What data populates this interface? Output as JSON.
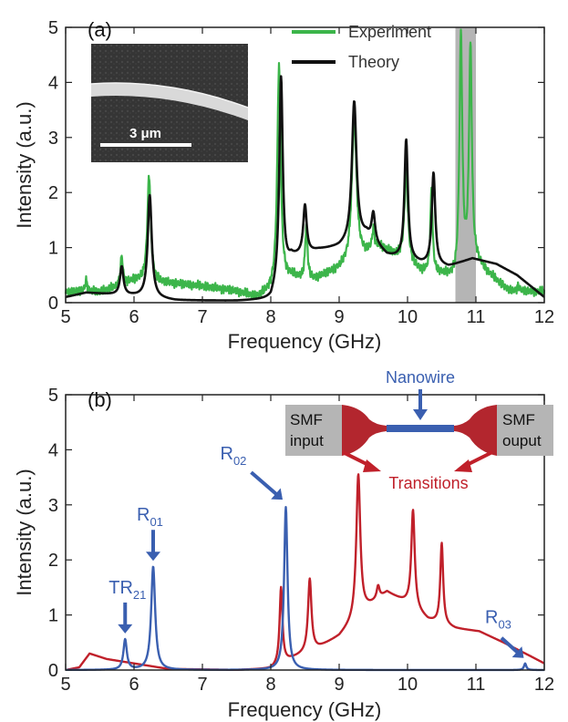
{
  "chart_data": [
    {
      "type": "line",
      "panel_label": "(a)",
      "xlabel": "Frequency (GHz)",
      "ylabel": "Intensity (a.u.)",
      "xlim": [
        5,
        12
      ],
      "ylim": [
        0,
        5
      ],
      "xticks": [
        5,
        6,
        7,
        8,
        9,
        10,
        11,
        12
      ],
      "yticks": [
        0,
        1,
        2,
        3,
        4,
        5
      ],
      "legend_position": "top-right",
      "shaded_band": [
        10.7,
        11.0
      ],
      "inset": {
        "scale_label": "3 μm"
      },
      "colors": {
        "experiment": "#3cb54a",
        "theory": "#111111",
        "band": "#b5b5b5"
      },
      "series": [
        {
          "name": "Experiment",
          "baseline": [
            [
              5.0,
              0.2
            ],
            [
              5.5,
              0.2
            ],
            [
              5.8,
              0.3
            ],
            [
              6.0,
              0.4
            ],
            [
              6.5,
              0.35
            ],
            [
              7.0,
              0.3
            ],
            [
              7.5,
              0.2
            ],
            [
              7.8,
              0.1
            ],
            [
              8.0,
              0.2
            ],
            [
              8.3,
              0.45
            ],
            [
              8.6,
              0.4
            ],
            [
              9.0,
              0.6
            ],
            [
              9.3,
              0.8
            ],
            [
              9.6,
              1.0
            ],
            [
              9.9,
              0.8
            ],
            [
              10.2,
              0.55
            ],
            [
              10.5,
              0.5
            ],
            [
              10.7,
              0.4
            ],
            [
              11.0,
              0.7
            ],
            [
              11.5,
              0.2
            ],
            [
              12.0,
              0.2
            ]
          ],
          "peaks": [
            [
              5.3,
              0.4,
              0.02
            ],
            [
              5.82,
              0.85,
              0.02
            ],
            [
              6.22,
              2.3,
              0.03
            ],
            [
              8.12,
              4.3,
              0.03
            ],
            [
              8.52,
              1.4,
              0.02
            ],
            [
              9.22,
              3.4,
              0.04
            ],
            [
              9.5,
              1.3,
              0.02
            ],
            [
              9.98,
              2.4,
              0.03
            ],
            [
              10.35,
              2.0,
              0.02
            ],
            [
              10.78,
              4.8,
              0.025
            ],
            [
              10.92,
              4.6,
              0.025
            ],
            [
              11.62,
              0.3,
              0.02
            ]
          ]
        },
        {
          "name": "Theory",
          "baseline": [
            [
              5.0,
              0.1
            ],
            [
              5.3,
              0.18
            ],
            [
              6.0,
              0.12
            ],
            [
              6.6,
              0.04
            ],
            [
              7.5,
              0.03
            ],
            [
              8.0,
              0.05
            ],
            [
              8.3,
              0.8
            ],
            [
              8.7,
              0.95
            ],
            [
              9.0,
              1.0
            ],
            [
              9.4,
              1.2
            ],
            [
              9.7,
              0.85
            ],
            [
              10.2,
              0.7
            ],
            [
              10.6,
              0.65
            ],
            [
              10.95,
              0.8
            ],
            [
              11.3,
              0.7
            ],
            [
              11.6,
              0.5
            ],
            [
              12.0,
              0.1
            ]
          ],
          "peaks": [
            [
              5.82,
              0.65,
              0.03
            ],
            [
              6.23,
              1.95,
              0.035
            ],
            [
              8.15,
              4.1,
              0.03
            ],
            [
              8.5,
              1.75,
              0.03
            ],
            [
              9.22,
              3.65,
              0.04
            ],
            [
              9.5,
              1.6,
              0.03
            ],
            [
              9.98,
              2.95,
              0.03
            ],
            [
              10.38,
              2.35,
              0.03
            ]
          ]
        }
      ]
    },
    {
      "type": "line",
      "panel_label": "(b)",
      "xlabel": "Frequency (GHz)",
      "ylabel": "Intensity (a.u.)",
      "xlim": [
        5,
        12
      ],
      "ylim": [
        0,
        5
      ],
      "xticks": [
        5,
        6,
        7,
        8,
        9,
        10,
        11,
        12
      ],
      "yticks": [
        0,
        1,
        2,
        3,
        4,
        5
      ],
      "colors": {
        "transitions": "#c0202a",
        "nanowire": "#3a5fb0",
        "smf": "#b5b5b5"
      },
      "schematic": {
        "left_box": [
          "SMF",
          "input"
        ],
        "right_box": [
          "SMF",
          "ouput"
        ],
        "nanowire_label": "Nanowire",
        "transitions_label": "Transitions"
      },
      "annotations": [
        {
          "main": "TR",
          "sub": "21",
          "x": 5.87
        },
        {
          "main": "R",
          "sub": "01",
          "x": 6.28
        },
        {
          "main": "R",
          "sub": "02",
          "x": 8.22
        },
        {
          "main": "R",
          "sub": "03",
          "x": 11.72
        }
      ],
      "series": [
        {
          "role": "transitions",
          "baseline": [
            [
              5.0,
              0.0
            ],
            [
              5.2,
              0.05
            ],
            [
              5.35,
              0.3
            ],
            [
              5.6,
              0.2
            ],
            [
              6.0,
              0.12
            ],
            [
              6.5,
              0.02
            ],
            [
              7.5,
              0.0
            ],
            [
              8.0,
              0.02
            ],
            [
              8.3,
              0.2
            ],
            [
              8.7,
              0.4
            ],
            [
              9.0,
              0.6
            ],
            [
              9.4,
              1.1
            ],
            [
              9.7,
              1.4
            ],
            [
              10.0,
              1.2
            ],
            [
              10.3,
              0.9
            ],
            [
              10.7,
              0.75
            ],
            [
              11.05,
              0.7
            ],
            [
              11.4,
              0.5
            ],
            [
              11.8,
              0.25
            ],
            [
              12.0,
              0.12
            ]
          ],
          "peaks": [
            [
              8.15,
              1.5,
              0.025
            ],
            [
              8.57,
              1.65,
              0.03
            ],
            [
              9.28,
              3.55,
              0.035
            ],
            [
              9.57,
              1.5,
              0.025
            ],
            [
              10.08,
              2.9,
              0.03
            ],
            [
              10.5,
              2.3,
              0.025
            ]
          ]
        },
        {
          "role": "nanowire",
          "baseline": [
            [
              5.0,
              0.0
            ],
            [
              12.0,
              0.0
            ]
          ],
          "peaks": [
            [
              5.87,
              0.55,
              0.03
            ],
            [
              6.28,
              1.88,
              0.035
            ],
            [
              8.22,
              2.96,
              0.03
            ],
            [
              11.72,
              0.12,
              0.02
            ]
          ]
        }
      ]
    }
  ]
}
